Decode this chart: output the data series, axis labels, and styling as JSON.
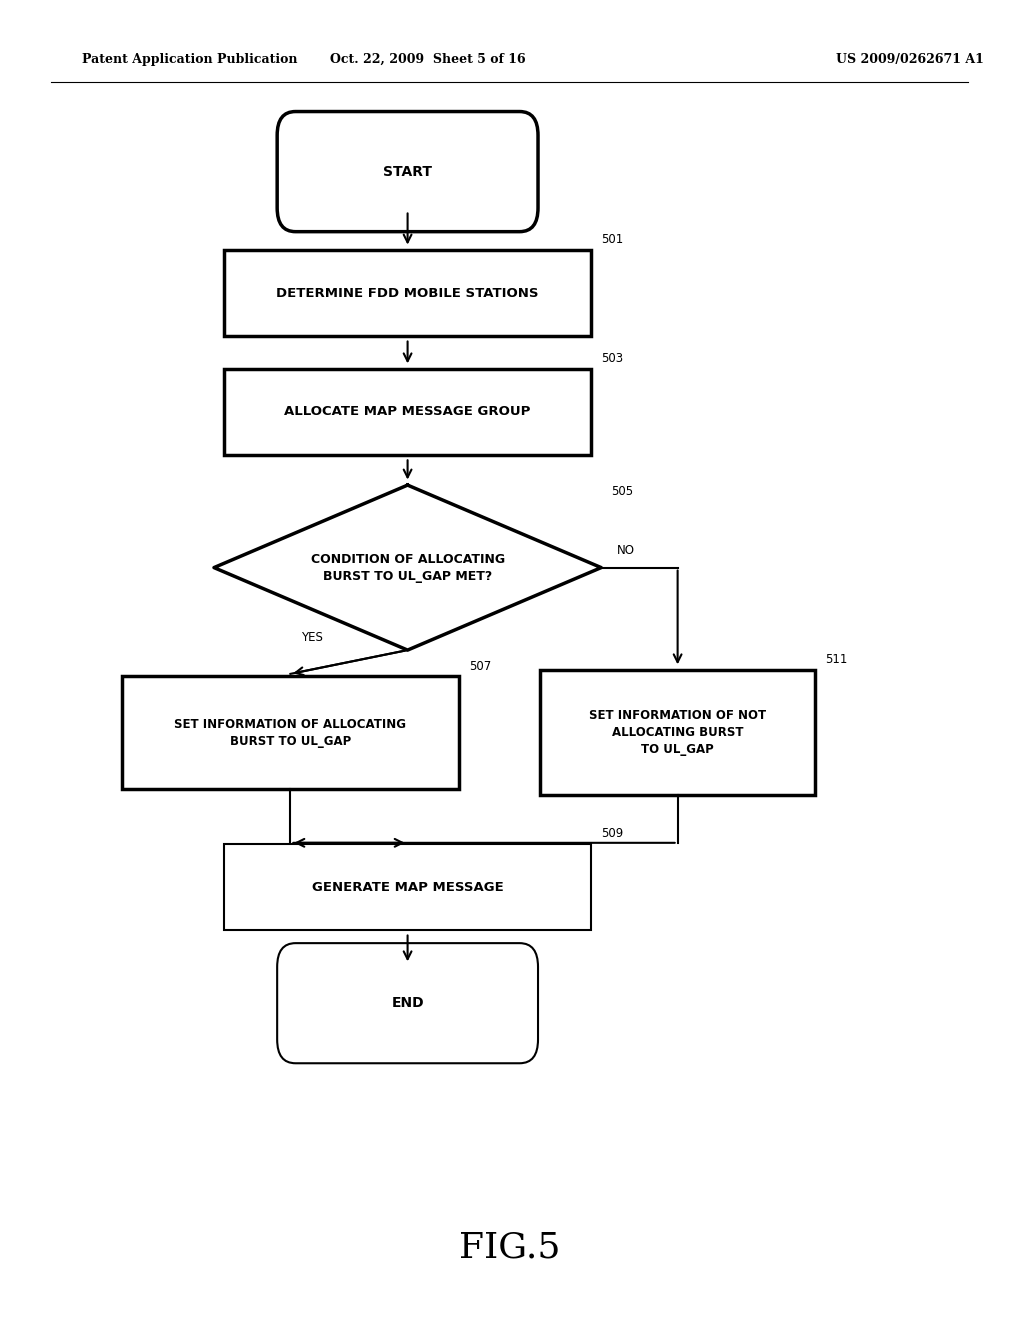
{
  "bg_color": "#ffffff",
  "header_left": "Patent Application Publication",
  "header_mid": "Oct. 22, 2009  Sheet 5 of 16",
  "header_right": "US 2009/0262671 A1",
  "fig_label": "FIG.5"
}
